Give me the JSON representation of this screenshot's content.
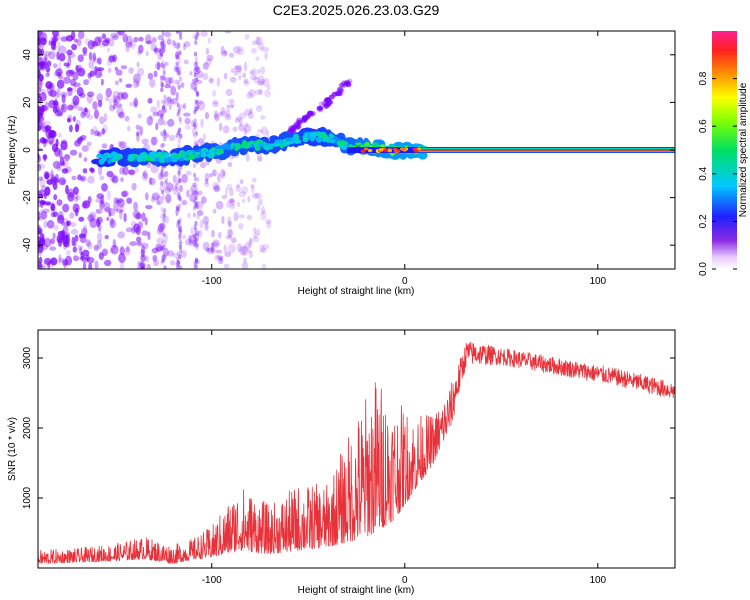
{
  "title": "C2E3.2025.026.23.03.G29",
  "colors": {
    "snr_line": "#e8323a",
    "axis": "#000000",
    "scatter_low": "#7a00ff",
    "scatter_mid": "#00d060",
    "scatter_high": "#ff2020"
  },
  "chart_data": [
    {
      "type": "heatmap",
      "panel": "spectrogram",
      "xlabel": "Height of straight line (km)",
      "ylabel": "Frequency (Hz)",
      "xlim": [
        -190,
        140
      ],
      "ylim": [
        -50,
        50
      ],
      "x_ticks": [
        -100,
        0,
        100
      ],
      "x_tick_labels": [
        "-100",
        "0",
        "100"
      ],
      "y_ticks": [
        -40,
        -20,
        0,
        20,
        40
      ],
      "y_tick_labels": [
        "-40",
        "-20",
        "0",
        "20",
        "40"
      ],
      "colorbar": {
        "label": "Normalized spectral amplitude",
        "range": [
          0,
          1
        ],
        "ticks": [
          0,
          0.2,
          0.4,
          0.6,
          0.8
        ],
        "tick_labels": [
          "0.0",
          "0.2",
          "0.4",
          "0.6",
          "0.8"
        ]
      },
      "ridge": [
        {
          "x": -160,
          "freq": -4,
          "amp": 0.25
        },
        {
          "x": -150,
          "freq": -3,
          "amp": 0.35
        },
        {
          "x": -140,
          "freq": -3,
          "amp": 0.45
        },
        {
          "x": -130,
          "freq": -3,
          "amp": 0.5
        },
        {
          "x": -120,
          "freq": -3,
          "amp": 0.4
        },
        {
          "x": -110,
          "freq": -2,
          "amp": 0.45
        },
        {
          "x": -100,
          "freq": -1,
          "amp": 0.5
        },
        {
          "x": -90,
          "freq": 1,
          "amp": 0.55
        },
        {
          "x": -80,
          "freq": 2,
          "amp": 0.5
        },
        {
          "x": -70,
          "freq": 2,
          "amp": 0.45
        },
        {
          "x": -60,
          "freq": 4,
          "amp": 0.5
        },
        {
          "x": -50,
          "freq": 6,
          "amp": 0.4
        },
        {
          "x": -40,
          "freq": 5,
          "amp": 0.45
        },
        {
          "x": -30,
          "freq": 2,
          "amp": 0.6
        },
        {
          "x": -20,
          "freq": 1,
          "amp": 0.75
        },
        {
          "x": -10,
          "freq": 0,
          "amp": 0.85
        },
        {
          "x": 0,
          "freq": 0,
          "amp": 0.9
        },
        {
          "x": 10,
          "freq": 0,
          "amp": 1.0
        },
        {
          "x": 140,
          "freq": 0,
          "amp": 1.0
        }
      ],
      "branch": [
        {
          "x": -60,
          "freq": 8,
          "amp": 0.3
        },
        {
          "x": -50,
          "freq": 14,
          "amp": 0.25
        },
        {
          "x": -40,
          "freq": 20,
          "amp": 0.2
        },
        {
          "x": -30,
          "freq": 28,
          "amp": 0.15
        }
      ]
    },
    {
      "type": "line",
      "panel": "snr",
      "xlabel": "Height of straight line (km)",
      "ylabel": "SNR (10 * v/v)",
      "xlim": [
        -190,
        140
      ],
      "ylim": [
        0,
        3400
      ],
      "x_ticks": [
        -100,
        0,
        100
      ],
      "x_tick_labels": [
        "-100",
        "0",
        "100"
      ],
      "y_ticks": [
        1000,
        2000,
        3000
      ],
      "y_tick_labels": [
        "1000",
        "2000",
        "3000"
      ],
      "envelope": [
        {
          "x": -190,
          "low": 60,
          "high": 260
        },
        {
          "x": -170,
          "low": 80,
          "high": 280
        },
        {
          "x": -150,
          "low": 100,
          "high": 350
        },
        {
          "x": -135,
          "low": 130,
          "high": 450
        },
        {
          "x": -120,
          "low": 60,
          "high": 330
        },
        {
          "x": -110,
          "low": 120,
          "high": 420
        },
        {
          "x": -100,
          "low": 150,
          "high": 600
        },
        {
          "x": -85,
          "low": 250,
          "high": 1200
        },
        {
          "x": -70,
          "low": 200,
          "high": 900
        },
        {
          "x": -55,
          "low": 250,
          "high": 1200
        },
        {
          "x": -40,
          "low": 300,
          "high": 1200
        },
        {
          "x": -25,
          "low": 400,
          "high": 2200
        },
        {
          "x": -15,
          "low": 500,
          "high": 2800
        },
        {
          "x": -5,
          "low": 700,
          "high": 2400
        },
        {
          "x": 5,
          "low": 1100,
          "high": 2200
        },
        {
          "x": 15,
          "low": 1500,
          "high": 2200
        },
        {
          "x": 25,
          "low": 2100,
          "high": 2700
        },
        {
          "x": 32,
          "low": 2900,
          "high": 3250
        },
        {
          "x": 50,
          "low": 2900,
          "high": 3150
        },
        {
          "x": 70,
          "low": 2800,
          "high": 3050
        },
        {
          "x": 90,
          "low": 2700,
          "high": 2950
        },
        {
          "x": 110,
          "low": 2600,
          "high": 2850
        },
        {
          "x": 125,
          "low": 2500,
          "high": 2750
        },
        {
          "x": 140,
          "low": 2400,
          "high": 2650
        }
      ]
    }
  ]
}
